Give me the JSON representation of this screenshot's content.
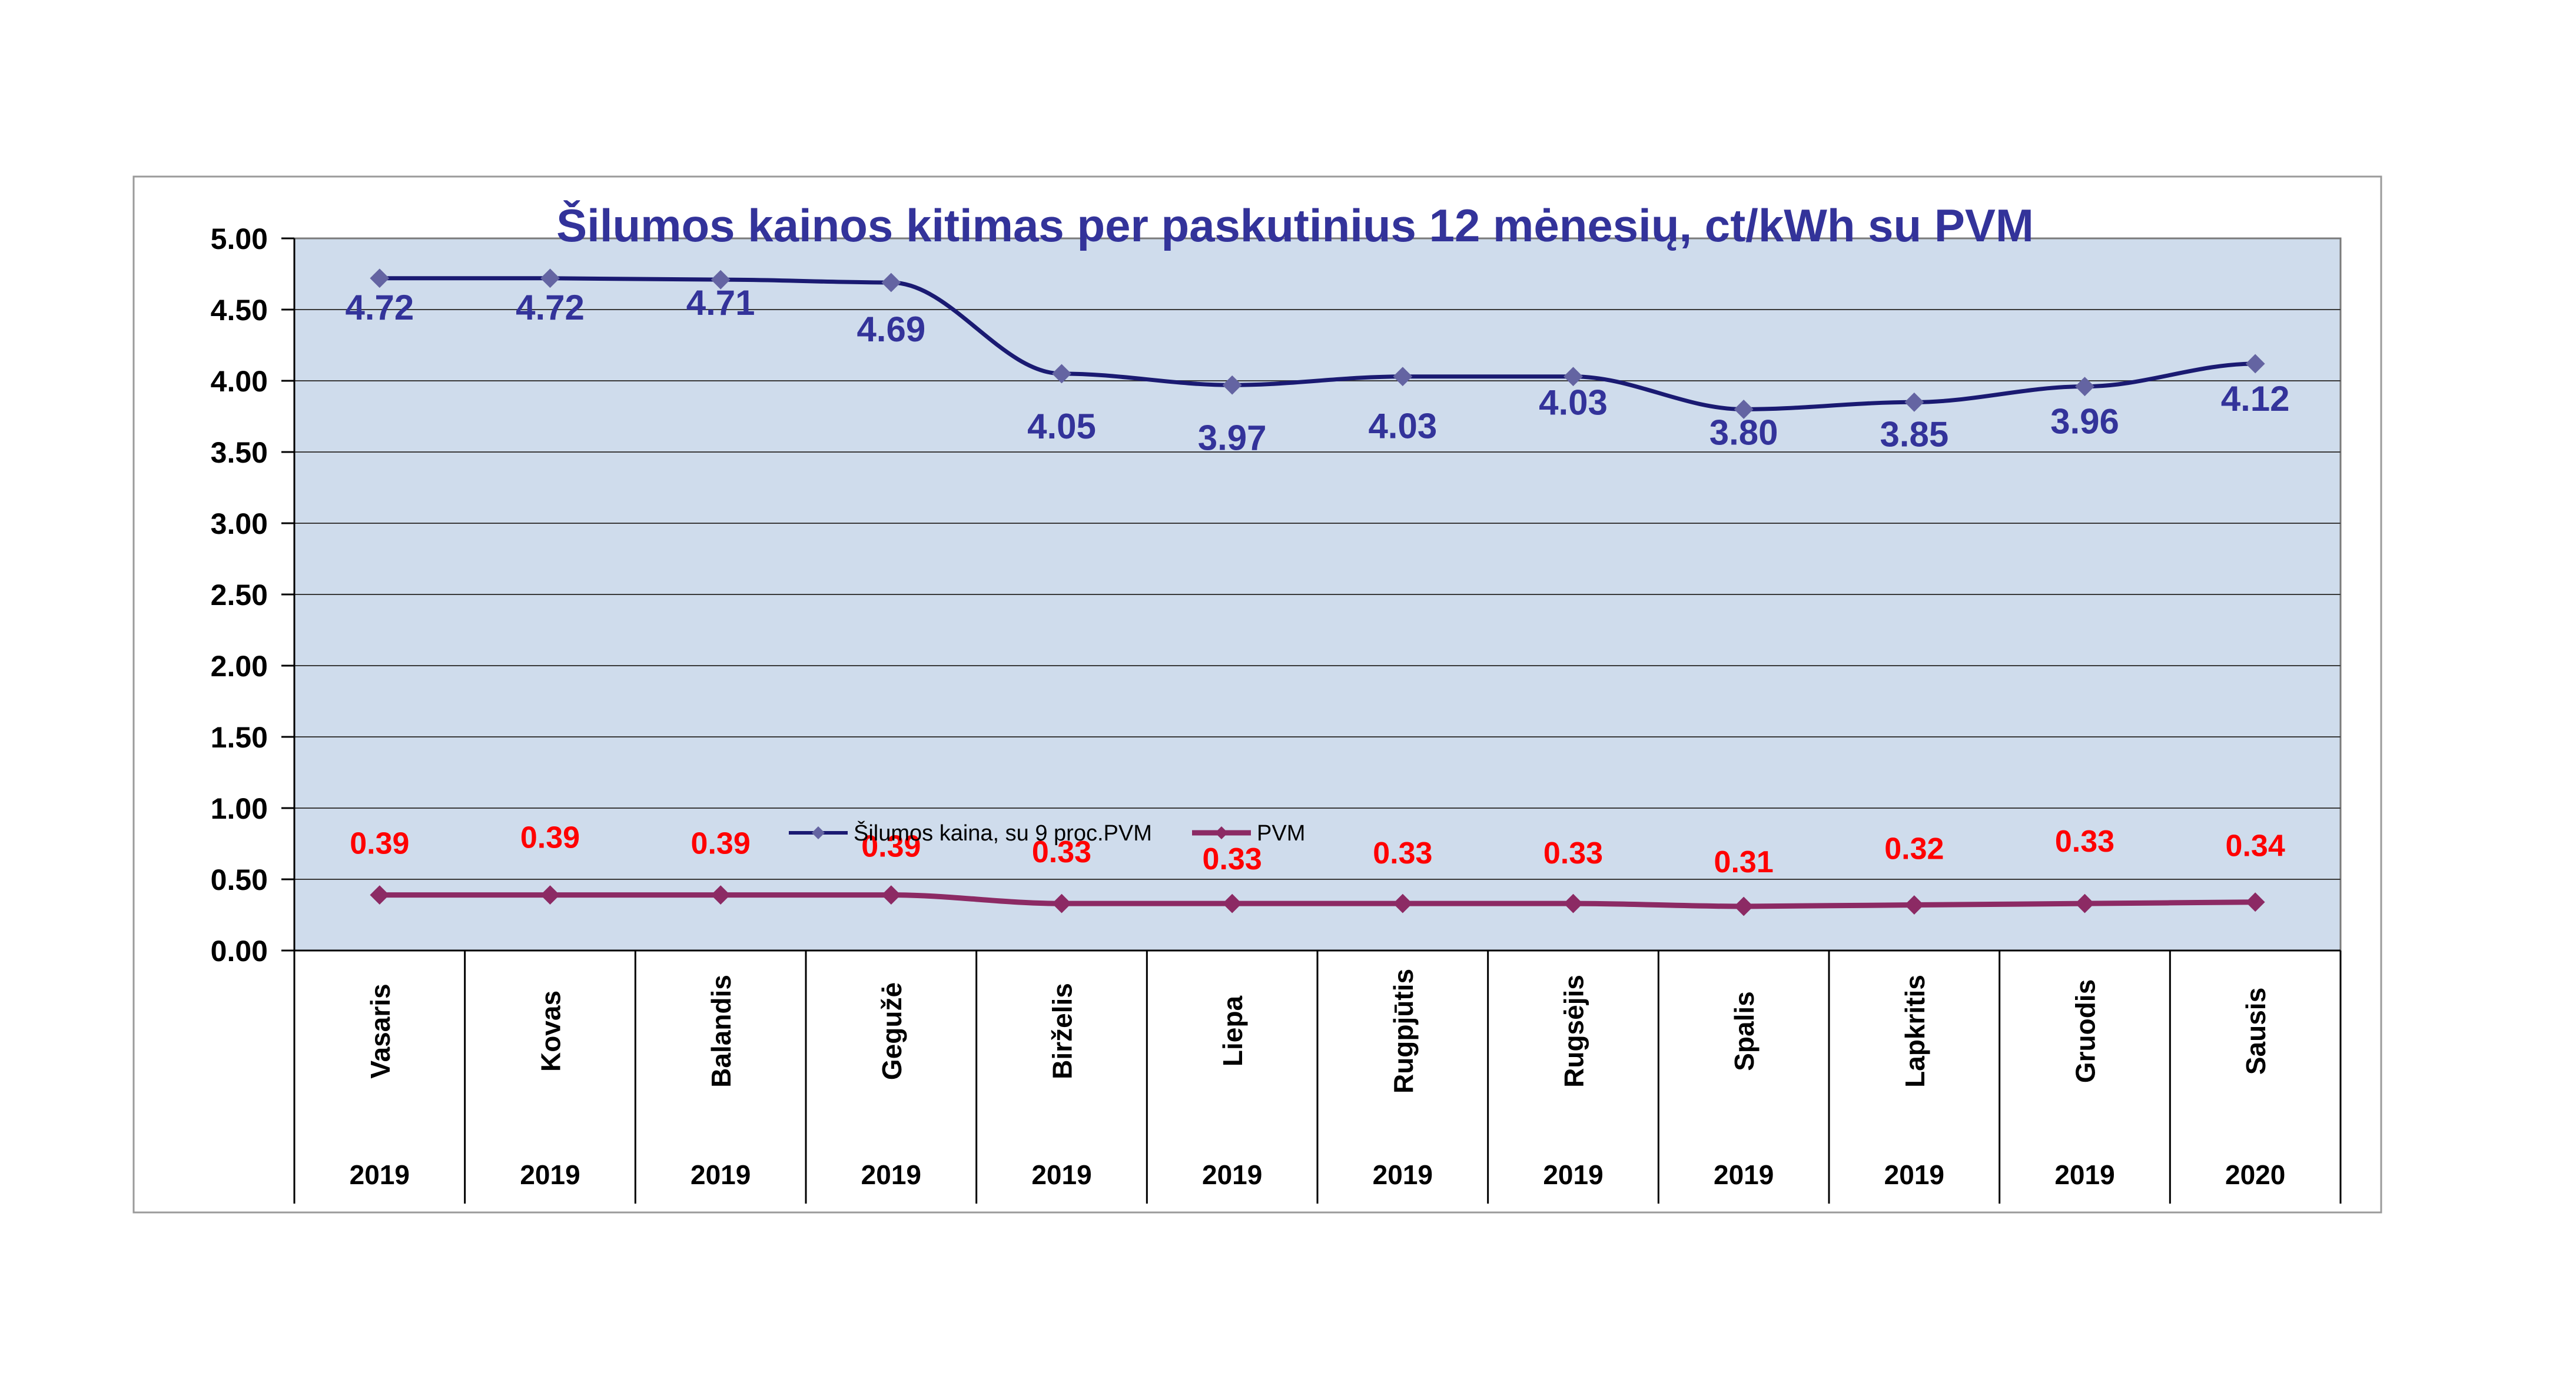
{
  "chart_data": {
    "type": "line",
    "title": "Šilumos kainos kitimas per paskutinius 12 mėnesių, ct/kWh su PVM",
    "categories": [
      "Vasaris",
      "Kovas",
      "Balandis",
      "Gegužė",
      "Birželis",
      "Liepa",
      "Rugpjūtis",
      "Rugsėjis",
      "Spalis",
      "Lapkritis",
      "Gruodis",
      "Sausis"
    ],
    "years": [
      "2019",
      "2019",
      "2019",
      "2019",
      "2019",
      "2019",
      "2019",
      "2019",
      "2019",
      "2019",
      "2019",
      "2020"
    ],
    "yticks": [
      "0.00",
      "0.50",
      "1.00",
      "1.50",
      "2.00",
      "2.50",
      "3.00",
      "3.50",
      "4.00",
      "4.50",
      "5.00"
    ],
    "ylim": [
      0,
      5
    ],
    "grid": true,
    "legend_position": "center",
    "plot_background": "#cfdcec",
    "series": [
      {
        "name": "Šilumos kaina, su 9 proc.PVM",
        "values": [
          4.72,
          4.72,
          4.71,
          4.69,
          4.05,
          3.97,
          4.03,
          4.03,
          3.8,
          3.85,
          3.96,
          4.12
        ],
        "labels": [
          "4.72",
          "4.72",
          "4.71",
          "4.69",
          "4.05",
          "3.97",
          "4.03",
          "4.03",
          "3.80",
          "3.85",
          "3.96",
          "4.12"
        ],
        "line_color": "#1a1a72",
        "marker_color": "#6464a2",
        "label_color": "#33339a"
      },
      {
        "name": "PVM",
        "values": [
          0.39,
          0.39,
          0.39,
          0.39,
          0.33,
          0.33,
          0.33,
          0.33,
          0.31,
          0.32,
          0.33,
          0.34
        ],
        "labels": [
          "0.39",
          "0.39",
          "0.39",
          "0.39",
          "0.33",
          "0.33",
          "0.33",
          "0.33",
          "0.31",
          "0.32",
          "0.33",
          "0.34"
        ],
        "line_color": "#8c2a64",
        "marker_color": "#8c2a64",
        "label_color": "#ff0000"
      }
    ]
  }
}
